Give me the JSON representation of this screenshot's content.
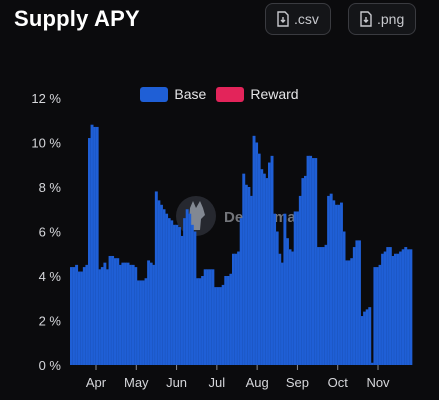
{
  "header": {
    "title": "Supply APY",
    "csv_label": ".csv",
    "png_label": ".png"
  },
  "watermark": {
    "text": "DefiLlama"
  },
  "colors": {
    "base": "#1f5fd6",
    "reward": "#e3245a",
    "background": "#0b0b0d",
    "axis_text": "#d6d7db"
  },
  "chart_data": {
    "type": "bar",
    "title": "Supply APY",
    "ylim": [
      0,
      12
    ],
    "y_ticks": [
      "0 %",
      "2 %",
      "4 %",
      "6 %",
      "8 %",
      "10 %",
      "12 %"
    ],
    "x_ticks": [
      "Apr",
      "May",
      "Jun",
      "Jul",
      "Aug",
      "Sep",
      "Oct",
      "Nov"
    ],
    "legend_position": "top-center",
    "series": [
      {
        "name": "Base",
        "color": "#1f5fd6",
        "values": [
          4.4,
          4.4,
          4.5,
          4.2,
          4.2,
          4.4,
          4.5,
          10.2,
          10.8,
          10.7,
          10.7,
          4.3,
          4.4,
          4.6,
          4.3,
          4.9,
          4.9,
          4.8,
          4.8,
          4.5,
          4.6,
          4.6,
          4.6,
          4.5,
          4.5,
          4.4,
          3.8,
          3.8,
          3.8,
          3.9,
          4.7,
          4.6,
          4.5,
          7.8,
          7.4,
          7.2,
          7.0,
          6.8,
          6.6,
          6.5,
          6.3,
          6.3,
          6.2,
          5.8,
          6.6,
          7.0,
          6.8,
          6.3,
          6.0,
          3.9,
          3.9,
          4.0,
          4.3,
          4.3,
          4.3,
          4.3,
          3.5,
          3.5,
          3.5,
          3.6,
          4.0,
          4.0,
          4.1,
          5.0,
          5.0,
          5.1,
          6.6,
          8.6,
          8.1,
          8.0,
          7.6,
          10.3,
          10.0,
          9.5,
          8.8,
          8.6,
          8.4,
          9.1,
          9.4,
          6.8,
          6.0,
          5.0,
          4.6,
          6.8,
          5.7,
          5.2,
          5.1,
          6.9,
          6.9,
          7.6,
          8.4,
          8.5,
          9.4,
          9.4,
          9.3,
          9.3,
          5.3,
          5.3,
          5.3,
          5.4,
          7.6,
          7.7,
          7.4,
          7.2,
          7.2,
          7.3,
          6.0,
          4.7,
          4.7,
          4.8,
          5.3,
          5.6,
          5.6,
          2.2,
          2.4,
          2.5,
          2.6,
          0.1,
          4.4,
          4.4,
          4.5,
          5.0,
          5.1,
          5.3,
          5.3,
          4.9,
          5.0,
          5.0,
          5.1,
          5.2,
          5.3,
          5.2,
          5.2
        ]
      },
      {
        "name": "Reward",
        "color": "#e3245a",
        "values": []
      }
    ]
  }
}
